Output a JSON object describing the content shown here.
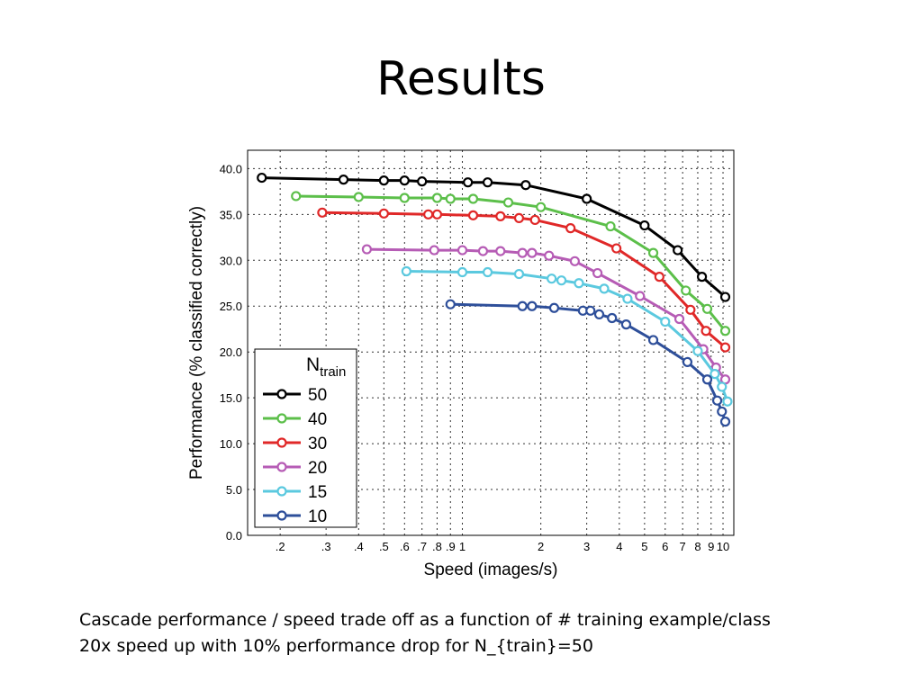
{
  "slide": {
    "title": "Results",
    "caption_lines": [
      "Cascade performance / speed trade off as a function of # training example/class",
      "20x speed up with 10% performance drop for N_{train}=50"
    ]
  },
  "chart_data": {
    "type": "line",
    "xlabel": "Speed (images/s)",
    "ylabel": "Performance (% classified correctly)",
    "xscale": "log",
    "xlim": [
      0.15,
      11
    ],
    "ylim": [
      0,
      42
    ],
    "grid": true,
    "legend_placement": "bottom-left",
    "legend_title": {
      "main": "N",
      "sub": "train"
    },
    "x_ticks": [
      {
        "value": 0.2,
        "label": ".2"
      },
      {
        "value": 0.3,
        "label": ".3"
      },
      {
        "value": 0.4,
        "label": ".4"
      },
      {
        "value": 0.5,
        "label": ".5"
      },
      {
        "value": 0.6,
        "label": ".6"
      },
      {
        "value": 0.7,
        "label": ".7"
      },
      {
        "value": 0.8,
        "label": ".8"
      },
      {
        "value": 0.9,
        "label": ".9"
      },
      {
        "value": 1,
        "label": "1"
      },
      {
        "value": 2,
        "label": "2"
      },
      {
        "value": 3,
        "label": "3"
      },
      {
        "value": 4,
        "label": "4"
      },
      {
        "value": 5,
        "label": "5"
      },
      {
        "value": 6,
        "label": "6"
      },
      {
        "value": 7,
        "label": "7"
      },
      {
        "value": 8,
        "label": "8"
      },
      {
        "value": 9,
        "label": "9"
      },
      {
        "value": 10,
        "label": "10"
      }
    ],
    "y_ticks": [
      {
        "value": 0,
        "label": "0.0"
      },
      {
        "value": 5,
        "label": "5.0"
      },
      {
        "value": 10,
        "label": "10.0"
      },
      {
        "value": 15,
        "label": "15.0"
      },
      {
        "value": 20,
        "label": "20.0"
      },
      {
        "value": 25,
        "label": "25.0"
      },
      {
        "value": 30,
        "label": "30.0"
      },
      {
        "value": 35,
        "label": "35.0"
      },
      {
        "value": 40,
        "label": "40.0"
      }
    ],
    "series": [
      {
        "name": "50",
        "color": "#000000",
        "points": [
          [
            0.17,
            39.0
          ],
          [
            0.35,
            38.8
          ],
          [
            0.5,
            38.7
          ],
          [
            0.6,
            38.7
          ],
          [
            0.7,
            38.6
          ],
          [
            1.05,
            38.5
          ],
          [
            1.25,
            38.5
          ],
          [
            1.75,
            38.2
          ],
          [
            3.0,
            36.7
          ],
          [
            5.0,
            33.8
          ],
          [
            6.7,
            31.1
          ],
          [
            8.3,
            28.2
          ],
          [
            10.2,
            26.0
          ]
        ]
      },
      {
        "name": "40",
        "color": "#5cbf4a",
        "points": [
          [
            0.23,
            37.0
          ],
          [
            0.4,
            36.9
          ],
          [
            0.6,
            36.8
          ],
          [
            0.8,
            36.8
          ],
          [
            0.9,
            36.7
          ],
          [
            1.1,
            36.7
          ],
          [
            1.5,
            36.3
          ],
          [
            2.0,
            35.8
          ],
          [
            3.7,
            33.7
          ],
          [
            5.4,
            30.8
          ],
          [
            7.2,
            26.7
          ],
          [
            8.7,
            24.7
          ],
          [
            10.2,
            22.3
          ]
        ]
      },
      {
        "name": "30",
        "color": "#e02828",
        "points": [
          [
            0.29,
            35.2
          ],
          [
            0.5,
            35.1
          ],
          [
            0.74,
            35.0
          ],
          [
            0.8,
            35.0
          ],
          [
            1.1,
            34.9
          ],
          [
            1.4,
            34.8
          ],
          [
            1.65,
            34.6
          ],
          [
            1.9,
            34.4
          ],
          [
            2.6,
            33.5
          ],
          [
            3.9,
            31.3
          ],
          [
            5.7,
            28.2
          ],
          [
            7.5,
            24.6
          ],
          [
            8.6,
            22.3
          ],
          [
            10.2,
            20.5
          ]
        ]
      },
      {
        "name": "20",
        "color": "#b65cb5",
        "points": [
          [
            0.43,
            31.2
          ],
          [
            0.78,
            31.1
          ],
          [
            1.0,
            31.1
          ],
          [
            1.2,
            31.0
          ],
          [
            1.4,
            31.0
          ],
          [
            1.7,
            30.8
          ],
          [
            1.85,
            30.8
          ],
          [
            2.15,
            30.5
          ],
          [
            2.7,
            29.9
          ],
          [
            3.3,
            28.6
          ],
          [
            4.8,
            26.1
          ],
          [
            6.8,
            23.6
          ],
          [
            8.4,
            20.3
          ],
          [
            9.4,
            18.3
          ],
          [
            10.2,
            17.0
          ]
        ]
      },
      {
        "name": "15",
        "color": "#5bc9df",
        "points": [
          [
            0.61,
            28.8
          ],
          [
            1.0,
            28.7
          ],
          [
            1.25,
            28.7
          ],
          [
            1.65,
            28.5
          ],
          [
            2.2,
            28.0
          ],
          [
            2.4,
            27.8
          ],
          [
            2.8,
            27.5
          ],
          [
            3.5,
            26.9
          ],
          [
            4.3,
            25.8
          ],
          [
            6.0,
            23.3
          ],
          [
            8.0,
            20.1
          ],
          [
            9.3,
            17.6
          ],
          [
            9.9,
            16.2
          ],
          [
            10.4,
            14.6
          ]
        ]
      },
      {
        "name": "10",
        "color": "#2e4f9a",
        "points": [
          [
            0.9,
            25.2
          ],
          [
            1.7,
            25.0
          ],
          [
            1.85,
            25.0
          ],
          [
            2.25,
            24.8
          ],
          [
            2.9,
            24.5
          ],
          [
            3.1,
            24.5
          ],
          [
            3.35,
            24.1
          ],
          [
            3.75,
            23.7
          ],
          [
            4.25,
            23.0
          ],
          [
            5.4,
            21.3
          ],
          [
            7.3,
            18.9
          ],
          [
            8.7,
            17.0
          ],
          [
            9.5,
            14.7
          ],
          [
            9.9,
            13.5
          ],
          [
            10.2,
            12.4
          ]
        ]
      }
    ]
  }
}
